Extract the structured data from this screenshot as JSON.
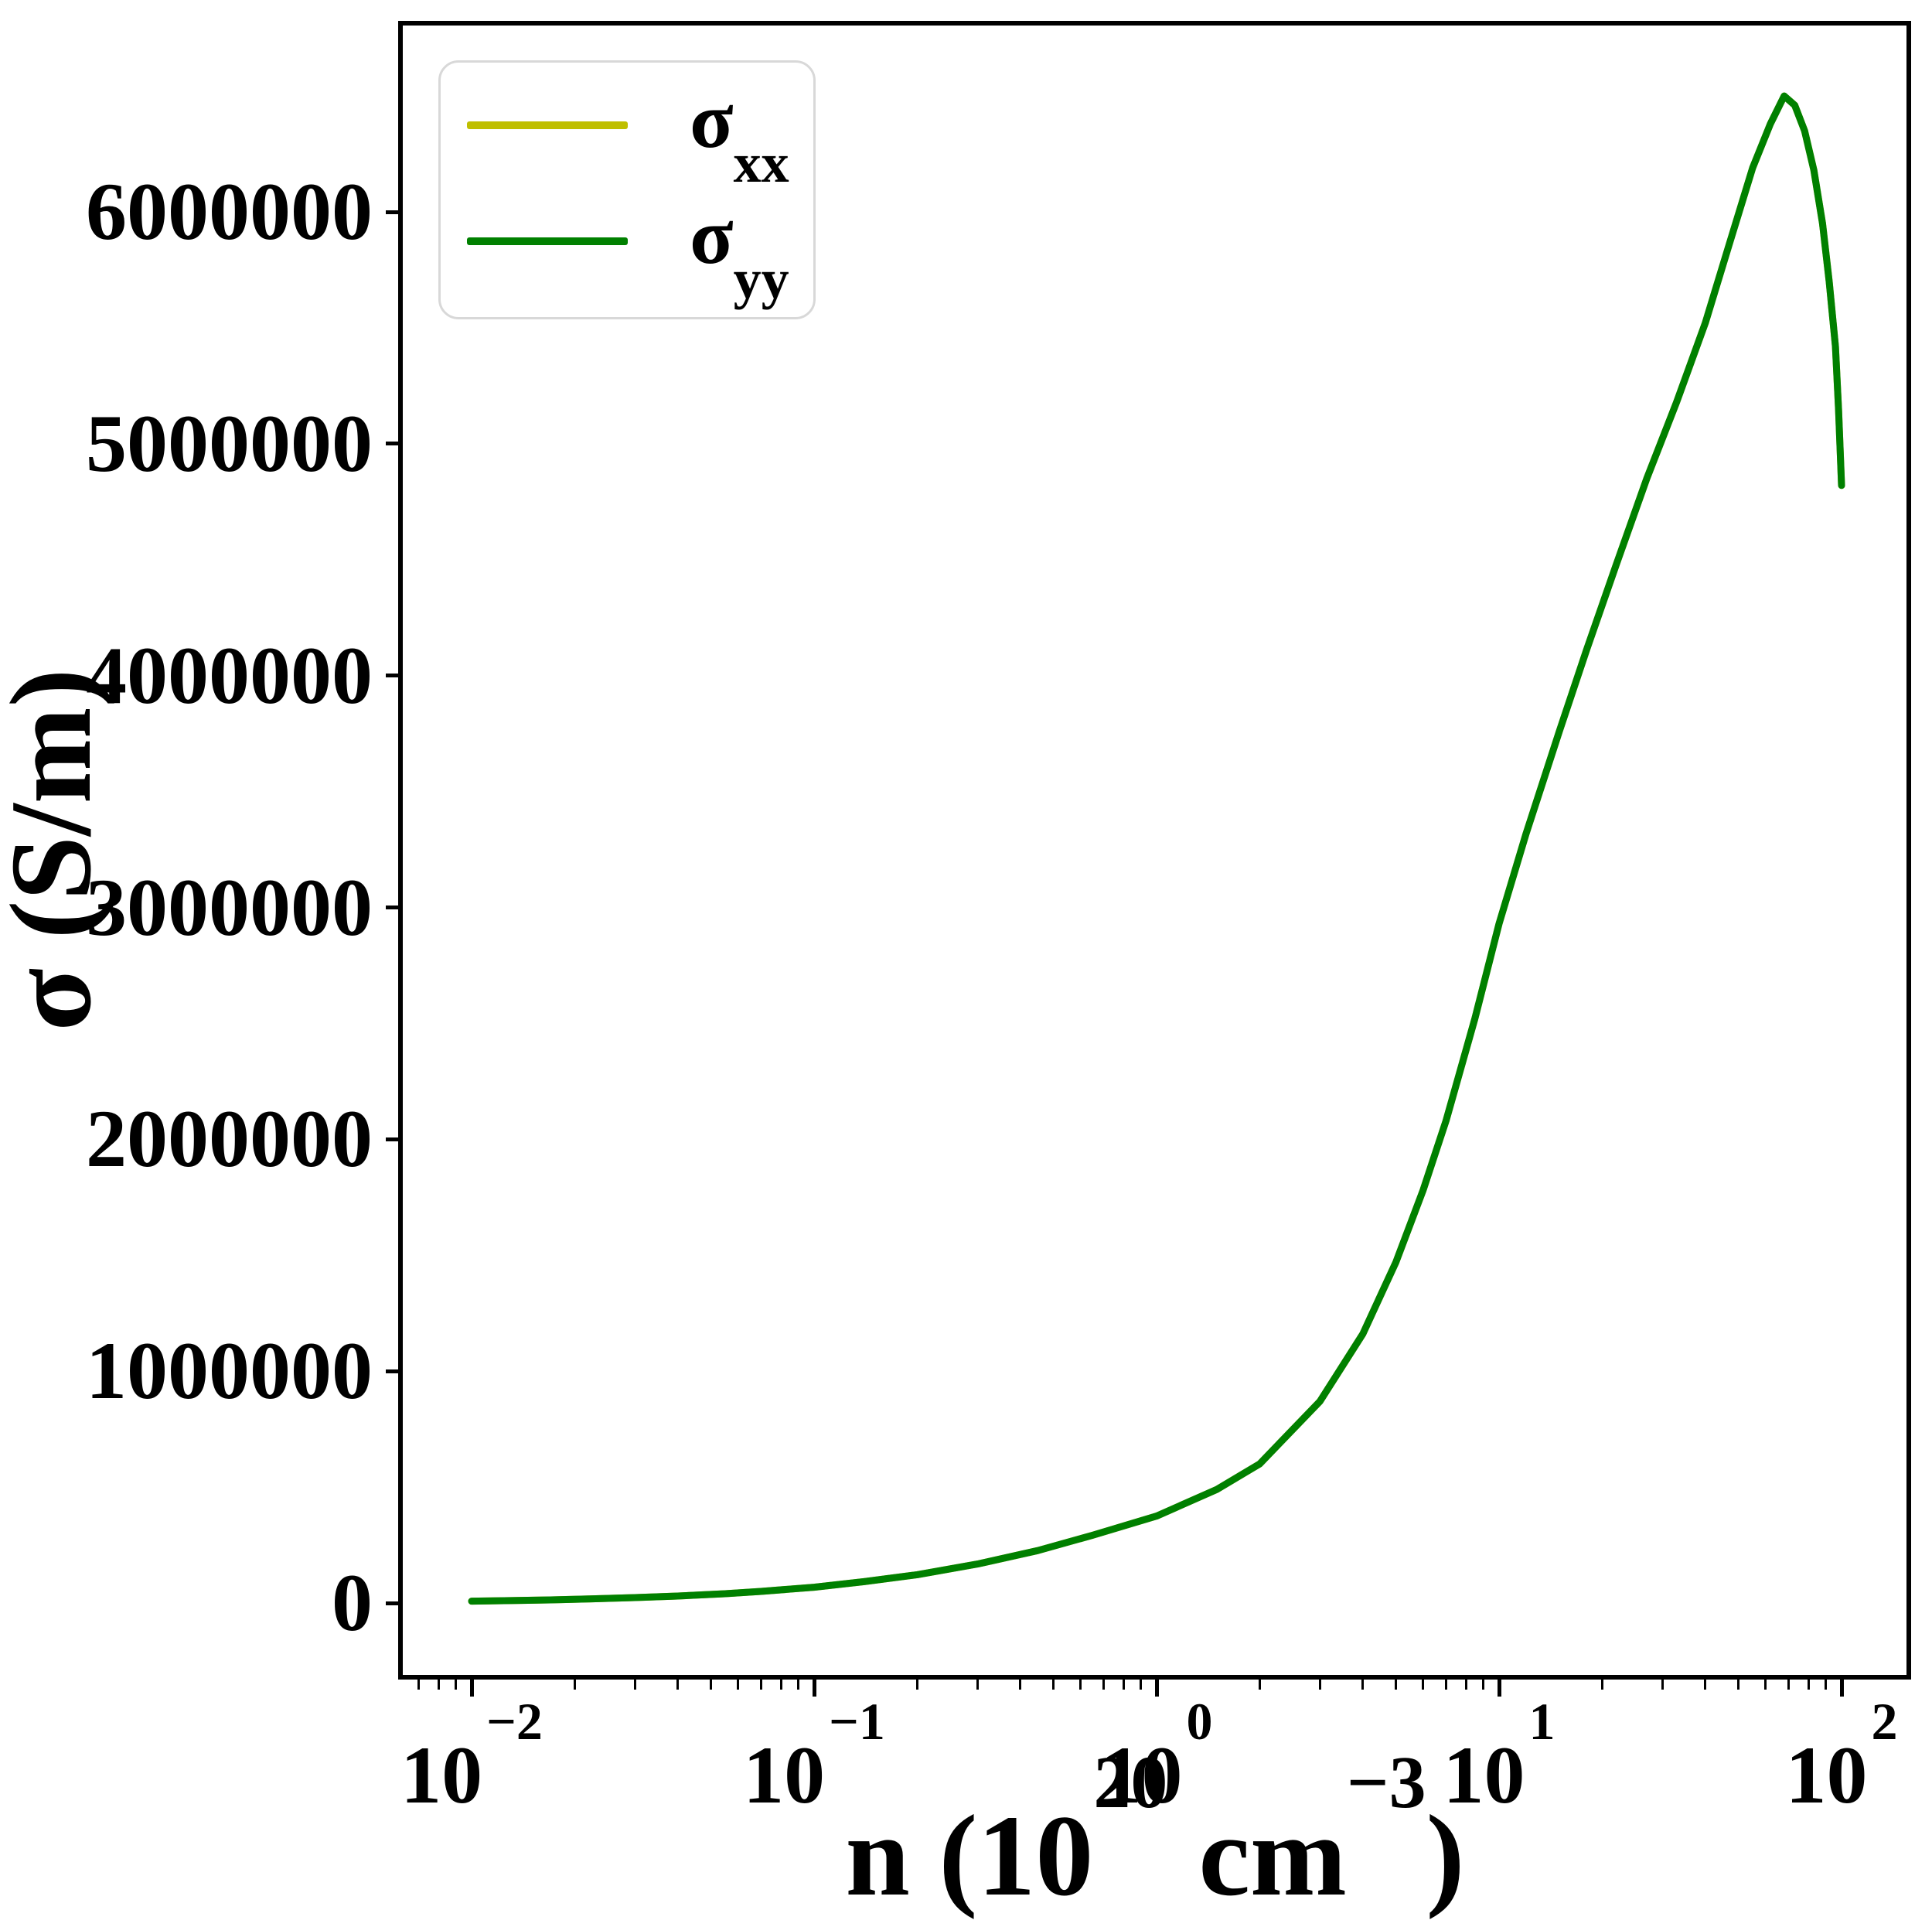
{
  "figure": {
    "background": "#ffffff",
    "spine_color": "#000000"
  },
  "ylabel": "σ (S/m)",
  "xlabel_parts": {
    "prefix": "n (10",
    "sup1": "20",
    "mid": "cm",
    "sup2": "−3",
    "suffix": ")"
  },
  "legend": {
    "entries": [
      {
        "base": "σ",
        "sub": "xx",
        "color": "#bfbf00"
      },
      {
        "base": "σ",
        "sub": "yy",
        "color": "#008000"
      }
    ]
  },
  "chart_data": {
    "type": "line",
    "title": "",
    "xlabel": "n (10^20 cm^-3)",
    "ylabel": "σ (S/m)",
    "x_scale": "log",
    "xlim": [
      0.0062,
      155
    ],
    "ylim": [
      -320000,
      6820000
    ],
    "grid": false,
    "legend_position": "upper left",
    "x_ticks": [
      0.01,
      0.1,
      1,
      10,
      100
    ],
    "x_tick_labels": [
      "10^−2",
      "10^−1",
      "10^0",
      "10^1",
      "10^2"
    ],
    "x_tick_exponents": [
      "−2",
      "−1",
      "0",
      "1",
      "2"
    ],
    "y_ticks": [
      0,
      1000000,
      2000000,
      3000000,
      4000000,
      5000000,
      6000000
    ],
    "series": [
      {
        "name": "σ_xx",
        "color": "#bfbf00",
        "note": "exactly coincident with σ_yy, hidden underneath"
      },
      {
        "name": "σ_yy",
        "color": "#008000",
        "note": "drawn on top of σ_xx"
      }
    ],
    "points": [
      [
        0.01,
        8000
      ],
      [
        0.013,
        10500
      ],
      [
        0.017,
        13500
      ],
      [
        0.022,
        17500
      ],
      [
        0.03,
        23500
      ],
      [
        0.04,
        30000
      ],
      [
        0.055,
        40000
      ],
      [
        0.07,
        50000
      ],
      [
        0.1,
        68000
      ],
      [
        0.14,
        92000
      ],
      [
        0.2,
        122000
      ],
      [
        0.3,
        168000
      ],
      [
        0.45,
        226000
      ],
      [
        0.65,
        292000
      ],
      [
        1.0,
        375000
      ],
      [
        1.5,
        490000
      ],
      [
        2.0,
        600000
      ],
      [
        3.0,
        870000
      ],
      [
        4.0,
        1160000
      ],
      [
        5.0,
        1470000
      ],
      [
        6.0,
        1780000
      ],
      [
        7.0,
        2080000
      ],
      [
        8.5,
        2520000
      ],
      [
        10,
        2930000
      ],
      [
        12,
        3320000
      ],
      [
        15,
        3760000
      ],
      [
        18,
        4110000
      ],
      [
        22,
        4480000
      ],
      [
        27,
        4850000
      ],
      [
        33,
        5180000
      ],
      [
        40,
        5520000
      ],
      [
        47,
        5860000
      ],
      [
        55,
        6190000
      ],
      [
        62,
        6380000
      ],
      [
        68,
        6500000
      ],
      [
        73,
        6460000
      ],
      [
        78,
        6350000
      ],
      [
        83,
        6180000
      ],
      [
        88,
        5950000
      ],
      [
        92,
        5700000
      ],
      [
        96,
        5420000
      ],
      [
        98,
        5150000
      ],
      [
        100,
        4820000
      ]
    ],
    "peak": {
      "n": 68,
      "sigma": 6500000
    },
    "endpoint": {
      "n": 100,
      "sigma": 4820000
    }
  }
}
